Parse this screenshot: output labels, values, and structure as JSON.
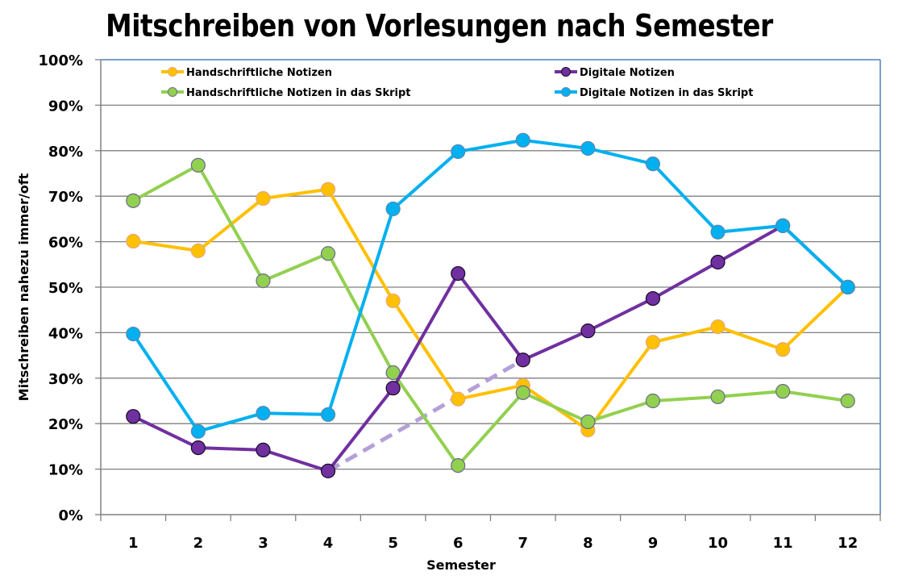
{
  "chart_data": {
    "type": "line",
    "title": "Mitschreiben von Vorlesungen nach Semester",
    "xlabel": "Semester",
    "ylabel": "Mitschreiben nahezu immer/oft",
    "categories": [
      "1",
      "2",
      "3",
      "4",
      "5",
      "6",
      "7",
      "8",
      "9",
      "10",
      "11",
      "12"
    ],
    "ylim": [
      0,
      100
    ],
    "yticks": [
      "0%",
      "10%",
      "20%",
      "30%",
      "40%",
      "50%",
      "60%",
      "70%",
      "80%",
      "90%",
      "100%"
    ],
    "grid": true,
    "legend_position": "top",
    "series": [
      {
        "name": "Handschriftliche Notizen",
        "color": "#FFC000",
        "marker_edge": "#E5A880",
        "values": [
          60.1,
          58.0,
          69.5,
          71.5,
          47.0,
          25.4,
          28.4,
          18.6,
          37.9,
          41.3,
          36.3,
          50.0
        ]
      },
      {
        "name": "Digitale Notizen",
        "color": "#7030A0",
        "marker_edge": "#1A0A26",
        "values": [
          21.6,
          14.7,
          14.2,
          9.6,
          27.8,
          53.0,
          34.0,
          40.4,
          47.5,
          55.5,
          63.5,
          50.0
        ]
      },
      {
        "name": "Handschriftliche Notizen in das Skript",
        "color": "#92D050",
        "marker_edge": "#6B6B8A",
        "values": [
          69.0,
          76.8,
          51.4,
          57.4,
          31.2,
          10.8,
          26.8,
          20.4,
          25.0,
          25.9,
          27.1,
          25.0
        ]
      },
      {
        "name": "Digitale Notizen in das Skript",
        "color": "#00B0F0",
        "marker_edge": "#5A8AB0",
        "values": [
          39.7,
          18.3,
          22.3,
          22.0,
          67.2,
          79.8,
          82.3,
          80.5,
          77.1,
          62.1,
          63.5,
          50.0
        ]
      }
    ],
    "annotations": [
      {
        "type": "dashed-connector",
        "series": "Digitale Notizen",
        "from_category": "4",
        "to_category": "7",
        "color": "#B4A0D8"
      }
    ]
  },
  "colors": {
    "grid": "#808080",
    "plot_border": "#4F81BD",
    "axis": "#808080"
  }
}
